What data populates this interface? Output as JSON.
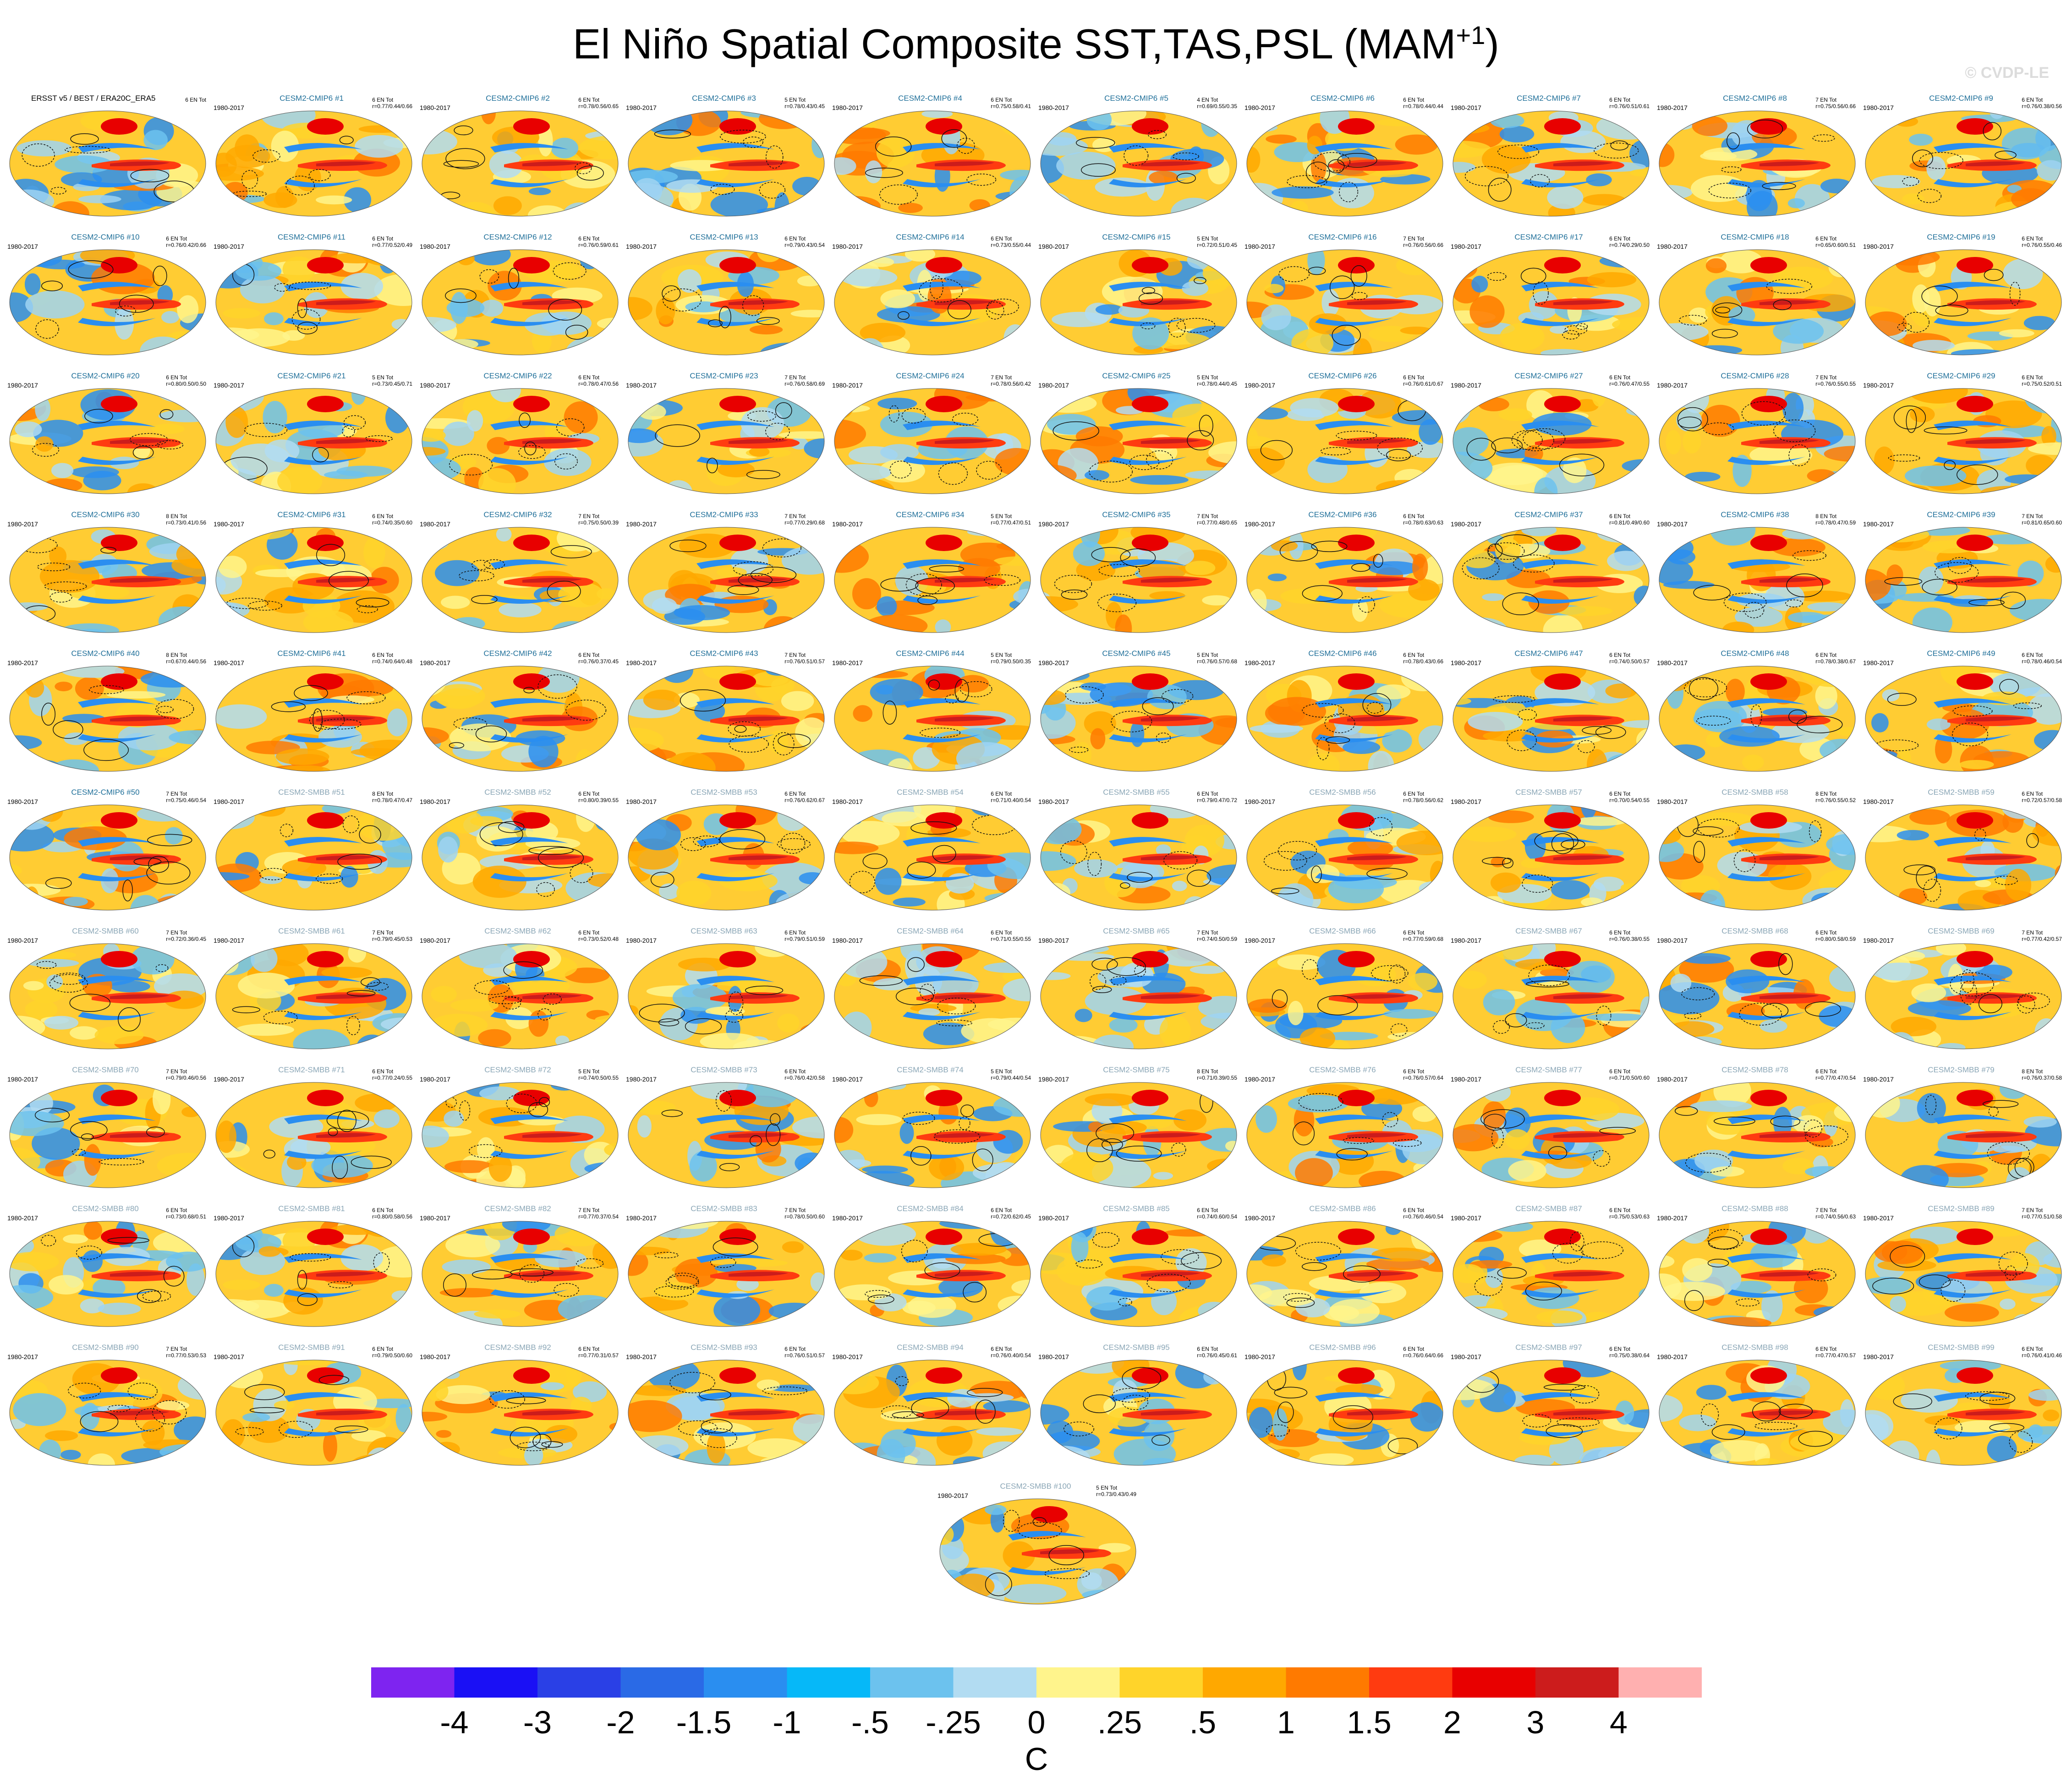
{
  "title": "El Niño Spatial Composite SST,TAS,PSL (MAM",
  "title_superscript": "+1",
  "title_suffix": ")",
  "watermark": "© CVDP-LE",
  "colors": {
    "cmip_label": "#1f6f99",
    "smbb_label": "#8aa6b6"
  },
  "panels": [
    {
      "name": "ERSST v5 / BEST / ERA20C_ERA5",
      "period": "",
      "stats": "6 EN Tot",
      "kind": "obs"
    },
    {
      "name": "CESM2-CMIP6 #1",
      "period": "1980-2017",
      "stats": "6 EN Tot\nr=0.77/0.44/0.66",
      "kind": "cmip"
    },
    {
      "name": "CESM2-CMIP6 #2",
      "period": "1980-2017",
      "stats": "6 EN Tot\nr=0.78/0.56/0.65",
      "kind": "cmip"
    },
    {
      "name": "CESM2-CMIP6 #3",
      "period": "1980-2017",
      "stats": "5 EN Tot\nr=0.78/0.43/0.45",
      "kind": "cmip"
    },
    {
      "name": "CESM2-CMIP6 #4",
      "period": "1980-2017",
      "stats": "6 EN Tot\nr=0.75/0.58/0.41",
      "kind": "cmip"
    },
    {
      "name": "CESM2-CMIP6 #5",
      "period": "1980-2017",
      "stats": "4 EN Tot\nr=0.69/0.55/0.35",
      "kind": "cmip"
    },
    {
      "name": "CESM2-CMIP6 #6",
      "period": "1980-2017",
      "stats": "6 EN Tot\nr=0.78/0.44/0.44",
      "kind": "cmip"
    },
    {
      "name": "CESM2-CMIP6 #7",
      "period": "1980-2017",
      "stats": "6 EN Tot\nr=0.76/0.51/0.61",
      "kind": "cmip"
    },
    {
      "name": "CESM2-CMIP6 #8",
      "period": "1980-2017",
      "stats": "7 EN Tot\nr=0.75/0.56/0.66",
      "kind": "cmip"
    },
    {
      "name": "CESM2-CMIP6 #9",
      "period": "1980-2017",
      "stats": "6 EN Tot\nr=0.76/0.38/0.56",
      "kind": "cmip"
    },
    {
      "name": "CESM2-CMIP6 #10",
      "period": "1980-2017",
      "stats": "6 EN Tot\nr=0.76/0.42/0.66",
      "kind": "cmip"
    },
    {
      "name": "CESM2-CMIP6 #11",
      "period": "1980-2017",
      "stats": "6 EN Tot\nr=0.77/0.52/0.49",
      "kind": "cmip"
    },
    {
      "name": "CESM2-CMIP6 #12",
      "period": "1980-2017",
      "stats": "6 EN Tot\nr=0.76/0.59/0.61",
      "kind": "cmip"
    },
    {
      "name": "CESM2-CMIP6 #13",
      "period": "1980-2017",
      "stats": "6 EN Tot\nr=0.79/0.43/0.54",
      "kind": "cmip"
    },
    {
      "name": "CESM2-CMIP6 #14",
      "period": "1980-2017",
      "stats": "6 EN Tot\nr=0.73/0.55/0.44",
      "kind": "cmip"
    },
    {
      "name": "CESM2-CMIP6 #15",
      "period": "1980-2017",
      "stats": "5 EN Tot\nr=0.72/0.51/0.45",
      "kind": "cmip"
    },
    {
      "name": "CESM2-CMIP6 #16",
      "period": "1980-2017",
      "stats": "7 EN Tot\nr=0.76/0.56/0.66",
      "kind": "cmip"
    },
    {
      "name": "CESM2-CMIP6 #17",
      "period": "1980-2017",
      "stats": "6 EN Tot\nr=0.74/0.29/0.50",
      "kind": "cmip"
    },
    {
      "name": "CESM2-CMIP6 #18",
      "period": "1980-2017",
      "stats": "6 EN Tot\nr=0.65/0.60/0.51",
      "kind": "cmip"
    },
    {
      "name": "CESM2-CMIP6 #19",
      "period": "1980-2017",
      "stats": "6 EN Tot\nr=0.76/0.55/0.46",
      "kind": "cmip"
    },
    {
      "name": "CESM2-CMIP6 #20",
      "period": "1980-2017",
      "stats": "6 EN Tot\nr=0.80/0.50/0.50",
      "kind": "cmip"
    },
    {
      "name": "CESM2-CMIP6 #21",
      "period": "1980-2017",
      "stats": "5 EN Tot\nr=0.73/0.45/0.71",
      "kind": "cmip"
    },
    {
      "name": "CESM2-CMIP6 #22",
      "period": "1980-2017",
      "stats": "6 EN Tot\nr=0.78/0.47/0.56",
      "kind": "cmip"
    },
    {
      "name": "CESM2-CMIP6 #23",
      "period": "1980-2017",
      "stats": "7 EN Tot\nr=0.76/0.58/0.69",
      "kind": "cmip"
    },
    {
      "name": "CESM2-CMIP6 #24",
      "period": "1980-2017",
      "stats": "7 EN Tot\nr=0.78/0.56/0.42",
      "kind": "cmip"
    },
    {
      "name": "CESM2-CMIP6 #25",
      "period": "1980-2017",
      "stats": "5 EN Tot\nr=0.78/0.44/0.45",
      "kind": "cmip"
    },
    {
      "name": "CESM2-CMIP6 #26",
      "period": "1980-2017",
      "stats": "6 EN Tot\nr=0.76/0.61/0.67",
      "kind": "cmip"
    },
    {
      "name": "CESM2-CMIP6 #27",
      "period": "1980-2017",
      "stats": "6 EN Tot\nr=0.76/0.47/0.55",
      "kind": "cmip"
    },
    {
      "name": "CESM2-CMIP6 #28",
      "period": "1980-2017",
      "stats": "7 EN Tot\nr=0.76/0.55/0.55",
      "kind": "cmip"
    },
    {
      "name": "CESM2-CMIP6 #29",
      "period": "1980-2017",
      "stats": "6 EN Tot\nr=0.75/0.52/0.51",
      "kind": "cmip"
    },
    {
      "name": "CESM2-CMIP6 #30",
      "period": "1980-2017",
      "stats": "8 EN Tot\nr=0.73/0.41/0.56",
      "kind": "cmip"
    },
    {
      "name": "CESM2-CMIP6 #31",
      "period": "1980-2017",
      "stats": "6 EN Tot\nr=0.74/0.35/0.60",
      "kind": "cmip"
    },
    {
      "name": "CESM2-CMIP6 #32",
      "period": "1980-2017",
      "stats": "7 EN Tot\nr=0.75/0.50/0.39",
      "kind": "cmip"
    },
    {
      "name": "CESM2-CMIP6 #33",
      "period": "1980-2017",
      "stats": "7 EN Tot\nr=0.77/0.29/0.68",
      "kind": "cmip"
    },
    {
      "name": "CESM2-CMIP6 #34",
      "period": "1980-2017",
      "stats": "5 EN Tot\nr=0.77/0.47/0.51",
      "kind": "cmip"
    },
    {
      "name": "CESM2-CMIP6 #35",
      "period": "1980-2017",
      "stats": "7 EN Tot\nr=0.77/0.48/0.65",
      "kind": "cmip"
    },
    {
      "name": "CESM2-CMIP6 #36",
      "period": "1980-2017",
      "stats": "6 EN Tot\nr=0.78/0.63/0.63",
      "kind": "cmip"
    },
    {
      "name": "CESM2-CMIP6 #37",
      "period": "1980-2017",
      "stats": "6 EN Tot\nr=0.81/0.49/0.60",
      "kind": "cmip"
    },
    {
      "name": "CESM2-CMIP6 #38",
      "period": "1980-2017",
      "stats": "8 EN Tot\nr=0.78/0.47/0.59",
      "kind": "cmip"
    },
    {
      "name": "CESM2-CMIP6 #39",
      "period": "1980-2017",
      "stats": "7 EN Tot\nr=0.81/0.65/0.60",
      "kind": "cmip"
    },
    {
      "name": "CESM2-CMIP6 #40",
      "period": "1980-2017",
      "stats": "8 EN Tot\nr=0.67/0.44/0.56",
      "kind": "cmip"
    },
    {
      "name": "CESM2-CMIP6 #41",
      "period": "1980-2017",
      "stats": "6 EN Tot\nr=0.74/0.64/0.48",
      "kind": "cmip"
    },
    {
      "name": "CESM2-CMIP6 #42",
      "period": "1980-2017",
      "stats": "6 EN Tot\nr=0.76/0.37/0.45",
      "kind": "cmip"
    },
    {
      "name": "CESM2-CMIP6 #43",
      "period": "1980-2017",
      "stats": "7 EN Tot\nr=0.76/0.51/0.57",
      "kind": "cmip"
    },
    {
      "name": "CESM2-CMIP6 #44",
      "period": "1980-2017",
      "stats": "5 EN Tot\nr=0.79/0.50/0.35",
      "kind": "cmip"
    },
    {
      "name": "CESM2-CMIP6 #45",
      "period": "1980-2017",
      "stats": "5 EN Tot\nr=0.76/0.57/0.68",
      "kind": "cmip"
    },
    {
      "name": "CESM2-CMIP6 #46",
      "period": "1980-2017",
      "stats": "6 EN Tot\nr=0.78/0.43/0.66",
      "kind": "cmip"
    },
    {
      "name": "CESM2-CMIP6 #47",
      "period": "1980-2017",
      "stats": "6 EN Tot\nr=0.74/0.50/0.57",
      "kind": "cmip"
    },
    {
      "name": "CESM2-CMIP6 #48",
      "period": "1980-2017",
      "stats": "6 EN Tot\nr=0.78/0.38/0.67",
      "kind": "cmip"
    },
    {
      "name": "CESM2-CMIP6 #49",
      "period": "1980-2017",
      "stats": "6 EN Tot\nr=0.78/0.46/0.54",
      "kind": "cmip"
    },
    {
      "name": "CESM2-CMIP6 #50",
      "period": "1980-2017",
      "stats": "7 EN Tot\nr=0.75/0.46/0.54",
      "kind": "cmip"
    },
    {
      "name": "CESM2-SMBB #51",
      "period": "1980-2017",
      "stats": "8 EN Tot\nr=0.78/0.47/0.47",
      "kind": "smbb"
    },
    {
      "name": "CESM2-SMBB #52",
      "period": "1980-2017",
      "stats": "6 EN Tot\nr=0.80/0.39/0.55",
      "kind": "smbb"
    },
    {
      "name": "CESM2-SMBB #53",
      "period": "1980-2017",
      "stats": "6 EN Tot\nr=0.76/0.62/0.67",
      "kind": "smbb"
    },
    {
      "name": "CESM2-SMBB #54",
      "period": "1980-2017",
      "stats": "6 EN Tot\nr=0.71/0.40/0.54",
      "kind": "smbb"
    },
    {
      "name": "CESM2-SMBB #55",
      "period": "1980-2017",
      "stats": "6 EN Tot\nr=0.79/0.47/0.72",
      "kind": "smbb"
    },
    {
      "name": "CESM2-SMBB #56",
      "period": "1980-2017",
      "stats": "6 EN Tot\nr=0.78/0.56/0.62",
      "kind": "smbb"
    },
    {
      "name": "CESM2-SMBB #57",
      "period": "1980-2017",
      "stats": "6 EN Tot\nr=0.70/0.54/0.55",
      "kind": "smbb"
    },
    {
      "name": "CESM2-SMBB #58",
      "period": "1980-2017",
      "stats": "8 EN Tot\nr=0.76/0.55/0.52",
      "kind": "smbb"
    },
    {
      "name": "CESM2-SMBB #59",
      "period": "1980-2017",
      "stats": "6 EN Tot\nr=0.72/0.57/0.58",
      "kind": "smbb"
    },
    {
      "name": "CESM2-SMBB #60",
      "period": "1980-2017",
      "stats": "7 EN Tot\nr=0.72/0.36/0.45",
      "kind": "smbb"
    },
    {
      "name": "CESM2-SMBB #61",
      "period": "1980-2017",
      "stats": "7 EN Tot\nr=0.79/0.45/0.53",
      "kind": "smbb"
    },
    {
      "name": "CESM2-SMBB #62",
      "period": "1980-2017",
      "stats": "6 EN Tot\nr=0.73/0.52/0.48",
      "kind": "smbb"
    },
    {
      "name": "CESM2-SMBB #63",
      "period": "1980-2017",
      "stats": "6 EN Tot\nr=0.79/0.51/0.59",
      "kind": "smbb"
    },
    {
      "name": "CESM2-SMBB #64",
      "period": "1980-2017",
      "stats": "6 EN Tot\nr=0.71/0.55/0.55",
      "kind": "smbb"
    },
    {
      "name": "CESM2-SMBB #65",
      "period": "1980-2017",
      "stats": "7 EN Tot\nr=0.74/0.50/0.59",
      "kind": "smbb"
    },
    {
      "name": "CESM2-SMBB #66",
      "period": "1980-2017",
      "stats": "6 EN Tot\nr=0.77/0.59/0.68",
      "kind": "smbb"
    },
    {
      "name": "CESM2-SMBB #67",
      "period": "1980-2017",
      "stats": "6 EN Tot\nr=0.76/0.38/0.55",
      "kind": "smbb"
    },
    {
      "name": "CESM2-SMBB #68",
      "period": "1980-2017",
      "stats": "6 EN Tot\nr=0.80/0.58/0.59",
      "kind": "smbb"
    },
    {
      "name": "CESM2-SMBB #69",
      "period": "1980-2017",
      "stats": "7 EN Tot\nr=0.77/0.42/0.57",
      "kind": "smbb"
    },
    {
      "name": "CESM2-SMBB #70",
      "period": "1980-2017",
      "stats": "7 EN Tot\nr=0.79/0.46/0.56",
      "kind": "smbb"
    },
    {
      "name": "CESM2-SMBB #71",
      "period": "1980-2017",
      "stats": "6 EN Tot\nr=0.77/0.24/0.55",
      "kind": "smbb"
    },
    {
      "name": "CESM2-SMBB #72",
      "period": "1980-2017",
      "stats": "5 EN Tot\nr=0.74/0.50/0.55",
      "kind": "smbb"
    },
    {
      "name": "CESM2-SMBB #73",
      "period": "1980-2017",
      "stats": "6 EN Tot\nr=0.76/0.42/0.58",
      "kind": "smbb"
    },
    {
      "name": "CESM2-SMBB #74",
      "period": "1980-2017",
      "stats": "5 EN Tot\nr=0.79/0.44/0.54",
      "kind": "smbb"
    },
    {
      "name": "CESM2-SMBB #75",
      "period": "1980-2017",
      "stats": "8 EN Tot\nr=0.71/0.39/0.55",
      "kind": "smbb"
    },
    {
      "name": "CESM2-SMBB #76",
      "period": "1980-2017",
      "stats": "6 EN Tot\nr=0.76/0.57/0.64",
      "kind": "smbb"
    },
    {
      "name": "CESM2-SMBB #77",
      "period": "1980-2017",
      "stats": "6 EN Tot\nr=0.71/0.50/0.60",
      "kind": "smbb"
    },
    {
      "name": "CESM2-SMBB #78",
      "period": "1980-2017",
      "stats": "6 EN Tot\nr=0.77/0.47/0.54",
      "kind": "smbb"
    },
    {
      "name": "CESM2-SMBB #79",
      "period": "1980-2017",
      "stats": "8 EN Tot\nr=0.76/0.37/0.58",
      "kind": "smbb"
    },
    {
      "name": "CESM2-SMBB #80",
      "period": "1980-2017",
      "stats": "6 EN Tot\nr=0.73/0.68/0.51",
      "kind": "smbb"
    },
    {
      "name": "CESM2-SMBB #81",
      "period": "1980-2017",
      "stats": "6 EN Tot\nr=0.80/0.58/0.56",
      "kind": "smbb"
    },
    {
      "name": "CESM2-SMBB #82",
      "period": "1980-2017",
      "stats": "7 EN Tot\nr=0.77/0.37/0.54",
      "kind": "smbb"
    },
    {
      "name": "CESM2-SMBB #83",
      "period": "1980-2017",
      "stats": "7 EN Tot\nr=0.78/0.50/0.60",
      "kind": "smbb"
    },
    {
      "name": "CESM2-SMBB #84",
      "period": "1980-2017",
      "stats": "6 EN Tot\nr=0.72/0.62/0.45",
      "kind": "smbb"
    },
    {
      "name": "CESM2-SMBB #85",
      "period": "1980-2017",
      "stats": "6 EN Tot\nr=0.74/0.60/0.54",
      "kind": "smbb"
    },
    {
      "name": "CESM2-SMBB #86",
      "period": "1980-2017",
      "stats": "6 EN Tot\nr=0.76/0.46/0.54",
      "kind": "smbb"
    },
    {
      "name": "CESM2-SMBB #87",
      "period": "1980-2017",
      "stats": "6 EN Tot\nr=0.75/0.53/0.63",
      "kind": "smbb"
    },
    {
      "name": "CESM2-SMBB #88",
      "period": "1980-2017",
      "stats": "7 EN Tot\nr=0.74/0.56/0.63",
      "kind": "smbb"
    },
    {
      "name": "CESM2-SMBB #89",
      "period": "1980-2017",
      "stats": "7 EN Tot\nr=0.77/0.51/0.58",
      "kind": "smbb"
    },
    {
      "name": "CESM2-SMBB #90",
      "period": "1980-2017",
      "stats": "7 EN Tot\nr=0.77/0.53/0.53",
      "kind": "smbb"
    },
    {
      "name": "CESM2-SMBB #91",
      "period": "1980-2017",
      "stats": "6 EN Tot\nr=0.79/0.50/0.60",
      "kind": "smbb"
    },
    {
      "name": "CESM2-SMBB #92",
      "period": "1980-2017",
      "stats": "6 EN Tot\nr=0.77/0.31/0.57",
      "kind": "smbb"
    },
    {
      "name": "CESM2-SMBB #93",
      "period": "1980-2017",
      "stats": "6 EN Tot\nr=0.76/0.51/0.57",
      "kind": "smbb"
    },
    {
      "name": "CESM2-SMBB #94",
      "period": "1980-2017",
      "stats": "6 EN Tot\nr=0.76/0.40/0.54",
      "kind": "smbb"
    },
    {
      "name": "CESM2-SMBB #95",
      "period": "1980-2017",
      "stats": "6 EN Tot\nr=0.76/0.45/0.61",
      "kind": "smbb"
    },
    {
      "name": "CESM2-SMBB #96",
      "period": "1980-2017",
      "stats": "6 EN Tot\nr=0.76/0.64/0.66",
      "kind": "smbb"
    },
    {
      "name": "CESM2-SMBB #97",
      "period": "1980-2017",
      "stats": "6 EN Tot\nr=0.75/0.38/0.64",
      "kind": "smbb"
    },
    {
      "name": "CESM2-SMBB #98",
      "period": "1980-2017",
      "stats": "6 EN Tot\nr=0.77/0.47/0.57",
      "kind": "smbb"
    },
    {
      "name": "CESM2-SMBB #99",
      "period": "1980-2017",
      "stats": "6 EN Tot\nr=0.76/0.41/0.46",
      "kind": "smbb"
    },
    {
      "name": "CESM2-SMBB #100",
      "period": "1980-2017",
      "stats": "5 EN Tot\nr=0.73/0.43/0.49",
      "kind": "smbb"
    }
  ],
  "colorbar": {
    "units": "C",
    "labels": [
      "-4",
      "-3",
      "-2",
      "-1.5",
      "-1",
      "-.5",
      "-.25",
      "0",
      ".25",
      ".5",
      "1",
      "1.5",
      "2",
      "3",
      "4"
    ],
    "colors": [
      "#7e24f0",
      "#1a10f5",
      "#2a40e6",
      "#2a6ae6",
      "#2a8ef0",
      "#06b8f8",
      "#6cc2ee",
      "#b2dcf2",
      "#fff48c",
      "#ffd42a",
      "#ffa800",
      "#ff7a00",
      "#ff3b10",
      "#e80000",
      "#cc1c1c",
      "#ffb0b0"
    ]
  }
}
